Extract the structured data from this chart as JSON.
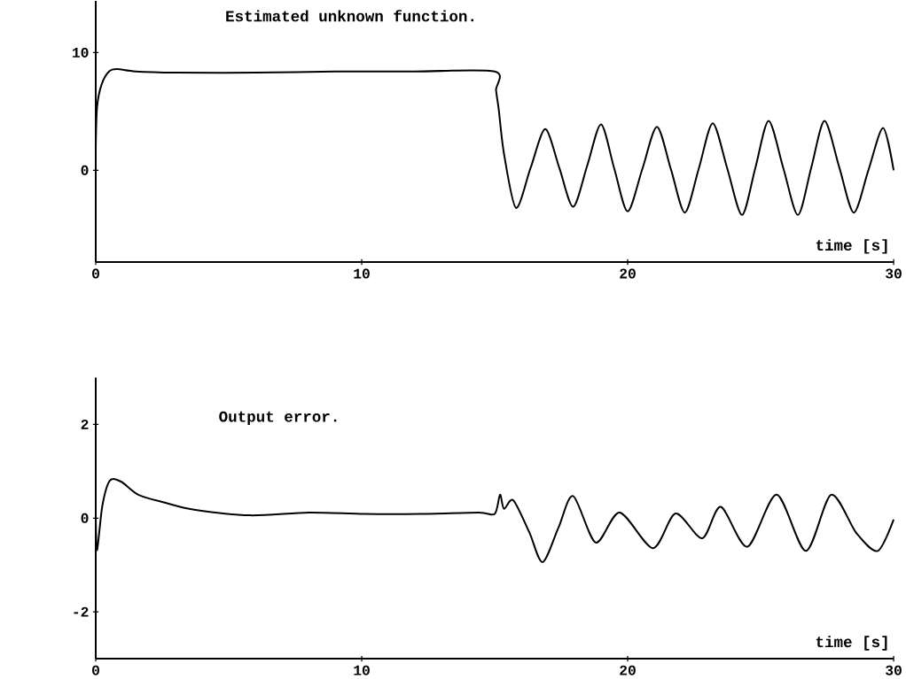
{
  "chart_data": [
    {
      "type": "line",
      "title": "Estimated unknown function.",
      "xlabel": "time [s]",
      "xlim": [
        0,
        30
      ],
      "xticks": [
        0,
        10,
        20,
        30
      ],
      "ylim": [
        -7.8,
        14.4
      ],
      "yticks": [
        0,
        10
      ],
      "series": [
        {
          "color": "#000000",
          "x": [
            0,
            0.05,
            0.22,
            0.5,
            0.8,
            1.5,
            3,
            6,
            9,
            12,
            15.0,
            15.05,
            15.15,
            15.35,
            15.8,
            16.35,
            16.9,
            17.43,
            17.95,
            18.48,
            19.0,
            19.5,
            20.0,
            20.55,
            21.1,
            21.63,
            22.15,
            22.68,
            23.2,
            23.75,
            24.3,
            24.8,
            25.3,
            25.85,
            26.4,
            26.9,
            27.4,
            27.95,
            28.5,
            29.05,
            29.6,
            30
          ],
          "values": [
            2.1,
            5.4,
            7.3,
            8.4,
            8.6,
            8.4,
            8.3,
            8.3,
            8.4,
            8.4,
            8.4,
            6.8,
            5.2,
            1.4,
            -3.2,
            0.2,
            3.5,
            0.2,
            -3.1,
            0.4,
            3.9,
            0.1,
            -3.5,
            0.1,
            3.7,
            0.05,
            -3.6,
            0.2,
            4.0,
            0.1,
            -3.8,
            0.2,
            4.2,
            0.2,
            -3.8,
            0.2,
            4.2,
            0.3,
            -3.6,
            0.0,
            3.6,
            0
          ]
        }
      ]
    },
    {
      "type": "line",
      "title": "Output error.",
      "xlabel": "time [s]",
      "xlim": [
        0,
        30
      ],
      "xticks": [
        0,
        10,
        20,
        30
      ],
      "ylim": [
        -3,
        3
      ],
      "yticks": [
        -2,
        0,
        2
      ],
      "series": [
        {
          "color": "#000000",
          "x": [
            0,
            0.05,
            0.25,
            0.53,
            0.95,
            1.6,
            2.6,
            3.7,
            5.8,
            8,
            10.1,
            12.2,
            14.4,
            15.0,
            15.2,
            15.35,
            15.7,
            16.3,
            16.8,
            17.4,
            17.95,
            18.8,
            19.7,
            20.95,
            21.8,
            22.8,
            23.5,
            24.5,
            25.6,
            26.7,
            27.65,
            28.6,
            29.4,
            30
          ],
          "values": [
            0,
            -0.68,
            0.27,
            0.8,
            0.78,
            0.5,
            0.33,
            0.18,
            0.06,
            0.12,
            0.09,
            0.09,
            0.12,
            0.09,
            0.5,
            0.2,
            0.38,
            -0.3,
            -0.94,
            -0.2,
            0.47,
            -0.52,
            0.12,
            -0.64,
            0.1,
            -0.43,
            0.24,
            -0.61,
            0.5,
            -0.7,
            0.5,
            -0.32,
            -0.7,
            -0.03
          ]
        }
      ]
    }
  ]
}
